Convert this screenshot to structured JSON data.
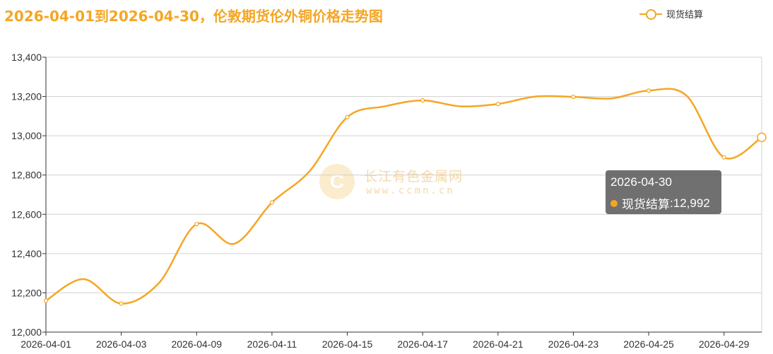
{
  "title": "2026-04-01到2026-04-30，伦敦期货伦外铜价格走势图",
  "legend": {
    "series_name": "现货结算",
    "icon": "circle-line-icon"
  },
  "watermark": {
    "text": "长江有色金属网",
    "url": "www.ccmn.cn",
    "logo_letter": "C"
  },
  "tooltip": {
    "date": "2026-04-30",
    "series_name": "现货结算",
    "value": "12,992",
    "separator": ": "
  },
  "colors": {
    "series": "#f5a623",
    "grid": "#d0d0d0",
    "axis": "#333333"
  },
  "chart_data": {
    "type": "line",
    "smooth": true,
    "x": [
      "2026-04-01",
      "2026-04-03",
      "2026-04-09",
      "2026-04-11",
      "2026-04-15",
      "2026-04-17",
      "2026-04-21",
      "2026-04-23",
      "2026-04-25",
      "2026-04-29",
      "2026-04-30"
    ],
    "x_tick_labels": [
      "2026-04-01",
      "2026-04-03",
      "2026-04-09",
      "2026-04-11",
      "2026-04-15",
      "2026-04-17",
      "2026-04-21",
      "2026-04-23",
      "2026-04-25",
      "2026-04-29"
    ],
    "x_positions": [
      0,
      2,
      4,
      6,
      8,
      10,
      12,
      14,
      16,
      18,
      19
    ],
    "curve_x": [
      0,
      1,
      2,
      3,
      4,
      5,
      6,
      7,
      8,
      9,
      10,
      11,
      12,
      13,
      14,
      15,
      16,
      17,
      18,
      19
    ],
    "curve_y": [
      12160,
      12270,
      12145,
      12250,
      12550,
      12450,
      12660,
      12820,
      13095,
      13150,
      13180,
      13150,
      13162,
      13200,
      13198,
      13190,
      13230,
      13205,
      12890,
      12992
    ],
    "series": [
      {
        "name": "现货结算",
        "values": [
          12160,
          12145,
          12550,
          12660,
          13095,
          13180,
          13162,
          13198,
          13230,
          12890,
          12992
        ]
      }
    ],
    "ylim": [
      12000,
      13400
    ],
    "yticks": [
      12000,
      12200,
      12400,
      12600,
      12800,
      13000,
      13200,
      13400
    ],
    "ytick_labels": [
      "12,000",
      "12,200",
      "12,400",
      "12,600",
      "12,800",
      "13,000",
      "13,200",
      "13,400"
    ],
    "grid": true,
    "legend_position": "top-right"
  }
}
